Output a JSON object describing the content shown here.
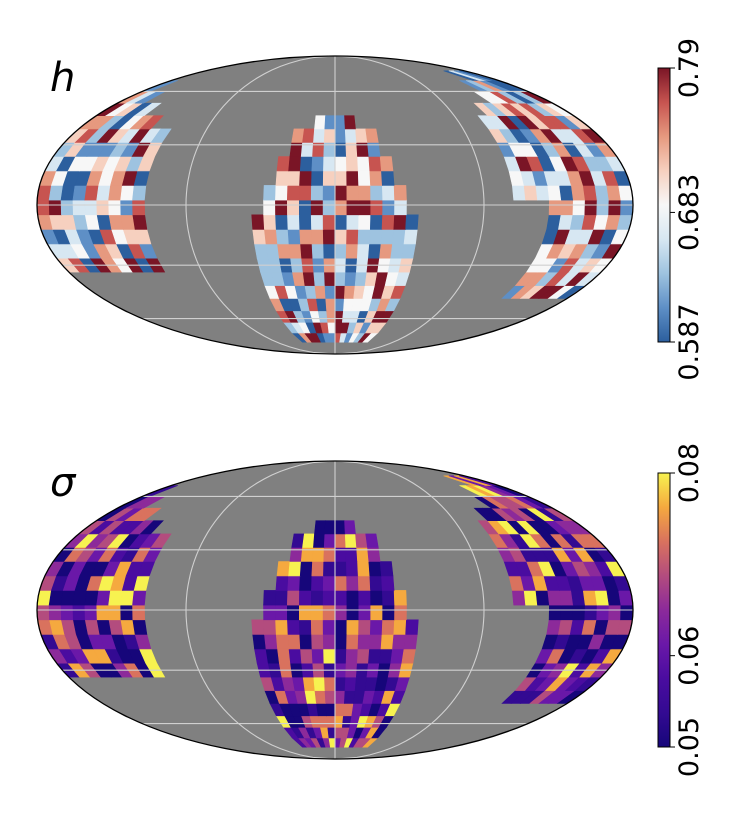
{
  "chart_data": [
    {
      "type": "heatmap",
      "projection": "mollweide",
      "label": "h",
      "colormap": "RdBu_r",
      "colorbar": {
        "range": [
          0.587,
          0.79
        ],
        "ticks": [
          0.587,
          0.683,
          0.79
        ],
        "tick_labels": [
          "0.587",
          "0.683",
          "0.79"
        ],
        "orientation": "vertical",
        "placement": "right"
      },
      "colors": [
        "#2c5f9e",
        "#5e8fc6",
        "#9ec3e0",
        "#d7e7f2",
        "#f7f7f7",
        "#f6d0bf",
        "#e6997f",
        "#c75450",
        "#7a1526"
      ],
      "background": "#808080",
      "grid": true
    },
    {
      "type": "heatmap",
      "projection": "mollweide",
      "label": "σ",
      "colormap": "plasma",
      "colorbar": {
        "range": [
          0.05,
          0.08
        ],
        "ticks": [
          0.05,
          0.06,
          0.08
        ],
        "tick_labels": [
          "0.05",
          "0.06",
          "0.08"
        ],
        "orientation": "vertical",
        "placement": "right"
      },
      "colors": [
        "#16067a",
        "#330a92",
        "#4a0ca0",
        "#6a18a8",
        "#8c2a9a",
        "#b34c7e",
        "#d9725e",
        "#f5a93f",
        "#f7f250"
      ],
      "background": "#808080",
      "grid": true
    }
  ]
}
